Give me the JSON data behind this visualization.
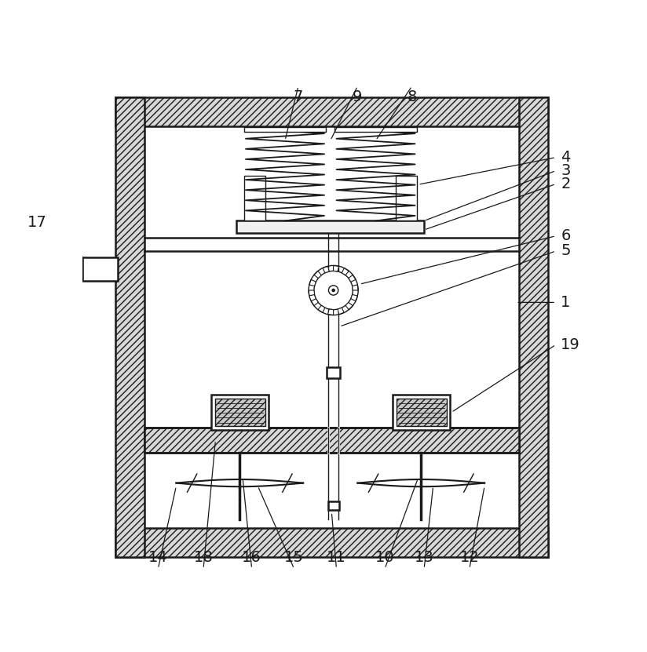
{
  "fig_width": 8.24,
  "fig_height": 8.31,
  "dpi": 100,
  "bg_color": "#ffffff",
  "lc": "#1a1a1a"
}
